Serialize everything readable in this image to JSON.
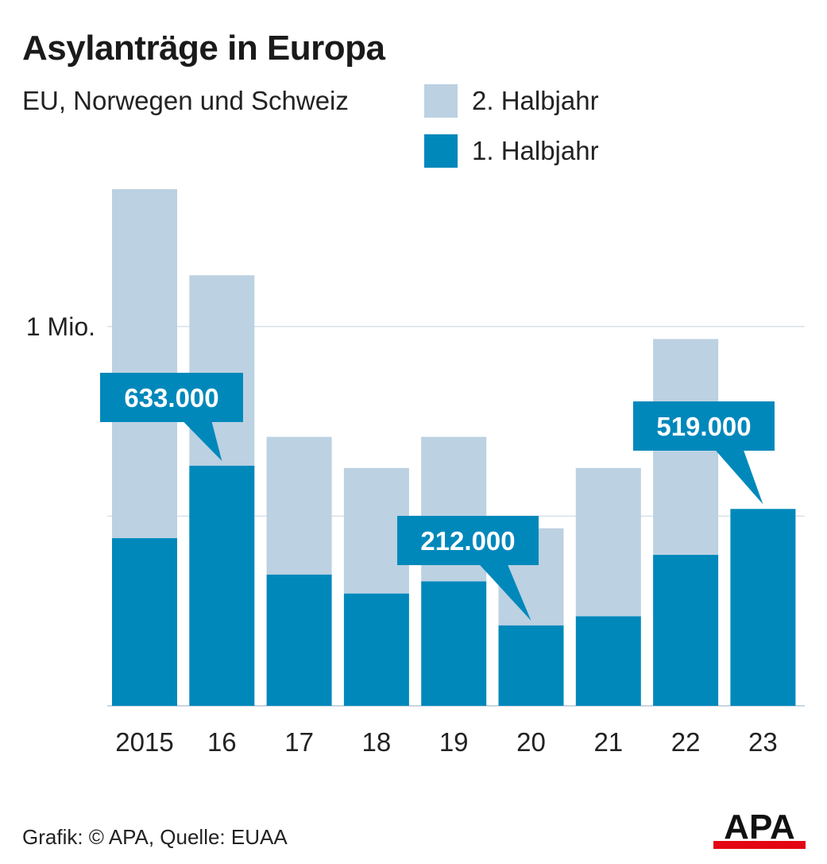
{
  "title": "Asylanträge in Europa",
  "subtitle": "EU, Norwegen und Schweiz",
  "legend": [
    {
      "label": "2. Halbjahr",
      "color": "#bcd1e2"
    },
    {
      "label": "1. Halbjahr",
      "color": "#0088bb"
    }
  ],
  "source": "Grafik: © APA, Quelle: EUAA",
  "logo_text": "APA",
  "chart_data": {
    "type": "bar",
    "stacked": true,
    "categories": [
      "2015",
      "16",
      "17",
      "18",
      "19",
      "20",
      "21",
      "22",
      "23"
    ],
    "series": [
      {
        "name": "1. Halbjahr",
        "color": "#0088bb",
        "values": [
          442000,
          633000,
          346000,
          296000,
          328000,
          212000,
          236000,
          398000,
          519000
        ]
      },
      {
        "name": "2. Halbjahr",
        "color": "#bcd1e2",
        "values": [
          920000,
          502000,
          363000,
          331000,
          381000,
          256000,
          391000,
          569000,
          0
        ]
      }
    ],
    "ylim": [
      0,
      1362000
    ],
    "yticks": [
      0,
      500000,
      1000000
    ],
    "ytick_labels": [
      "",
      "",
      "1 Mio."
    ],
    "grid": true,
    "legend_position": "top-right",
    "annotations": [
      {
        "text": "633.000",
        "category": "16"
      },
      {
        "text": "212.000",
        "category": "20"
      },
      {
        "text": "519.000",
        "category": "23"
      }
    ]
  }
}
